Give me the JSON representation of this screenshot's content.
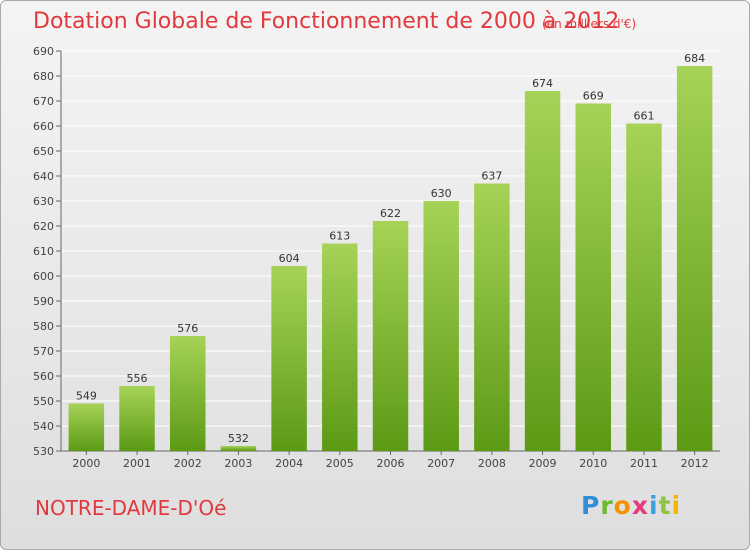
{
  "title": "Dotation Globale de Fonctionnement de 2000 à 2012",
  "units": "(en milliers d'€)",
  "commune": "NOTRE-DAME-D'Oé",
  "logo": {
    "p": "P",
    "r": "r",
    "o": "o",
    "x": "x",
    "i1": "i",
    "t": "t",
    "i2": "i"
  },
  "colors": {
    "title": "#e0393e",
    "bar_top": "#a6d357",
    "bar_bottom": "#5c9a14",
    "grid": "#ffffff"
  },
  "chart_data": {
    "type": "bar",
    "title": "Dotation Globale de Fonctionnement de 2000 à 2012",
    "subtitle": "(en milliers d'€)",
    "xlabel": "",
    "ylabel": "",
    "categories": [
      "2000",
      "2001",
      "2002",
      "2003",
      "2004",
      "2005",
      "2006",
      "2007",
      "2008",
      "2009",
      "2010",
      "2011",
      "2012"
    ],
    "values": [
      549,
      556,
      576,
      532,
      604,
      613,
      622,
      630,
      637,
      674,
      669,
      661,
      684
    ],
    "ylim": [
      530,
      690
    ],
    "yticks": [
      530,
      540,
      550,
      560,
      570,
      580,
      590,
      600,
      610,
      620,
      630,
      640,
      650,
      660,
      670,
      680,
      690
    ],
    "grid": true,
    "legend": "none"
  }
}
